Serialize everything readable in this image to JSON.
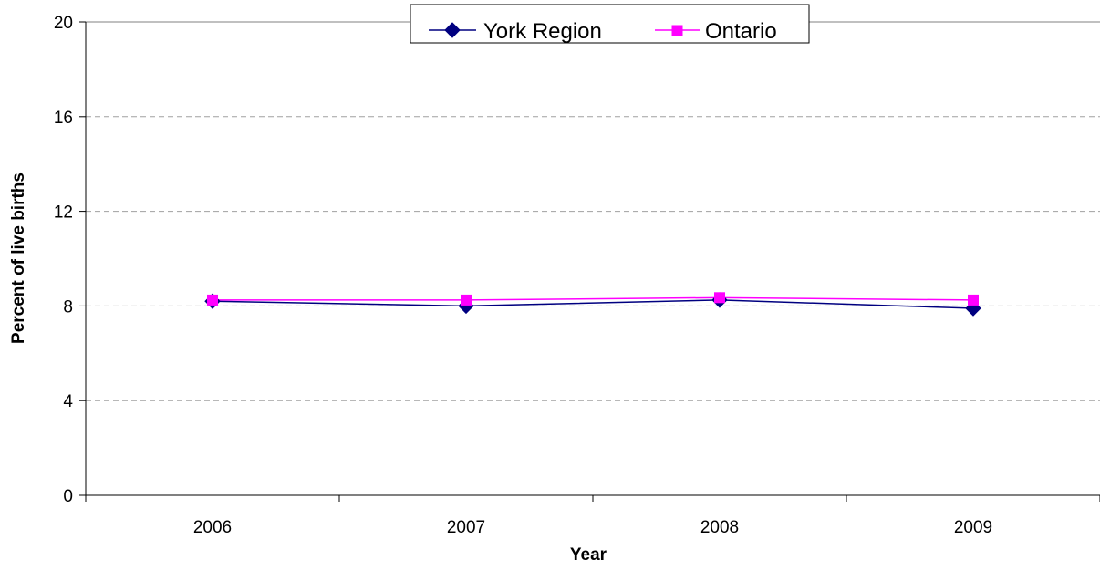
{
  "chart_data": {
    "type": "line",
    "title": "",
    "xlabel": "Year",
    "ylabel": "Percent of  live births",
    "categories": [
      "2006",
      "2007",
      "2008",
      "2009"
    ],
    "ylim": [
      0,
      20
    ],
    "yticks": [
      "0",
      "4",
      "8",
      "12",
      "16",
      "20"
    ],
    "grid": "horizontal dashed",
    "legend_position": "top-center",
    "series": [
      {
        "name": "York Region",
        "values": [
          8.2,
          8.0,
          8.25,
          7.9
        ],
        "color": "#000080",
        "marker": "diamond"
      },
      {
        "name": "Ontario",
        "values": [
          8.25,
          8.25,
          8.35,
          8.25
        ],
        "color": "#FF00FF",
        "marker": "square"
      }
    ]
  }
}
